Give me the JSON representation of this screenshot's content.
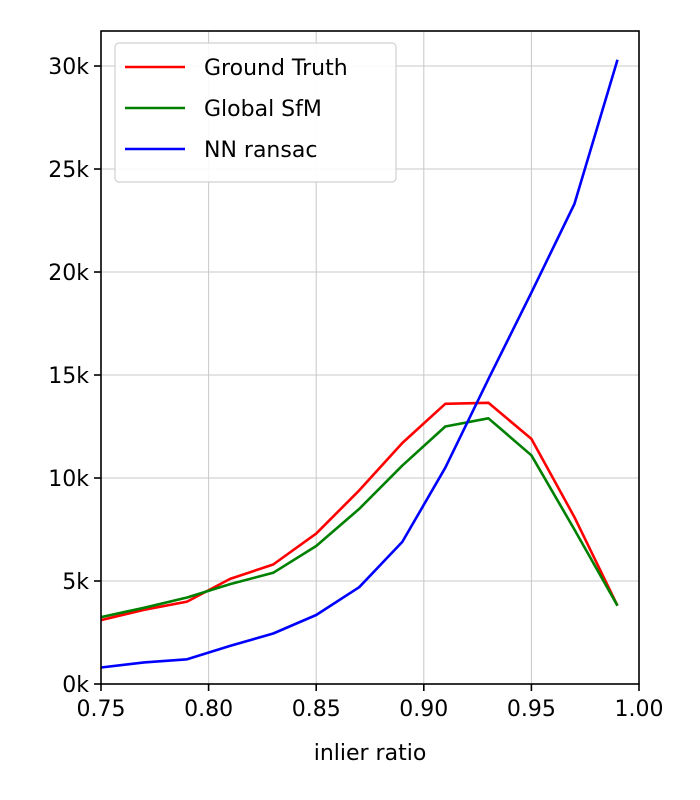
{
  "chart_data": {
    "type": "line",
    "title": "",
    "xlabel": "inlier ratio",
    "ylabel": "",
    "xlim": [
      0.75,
      1.0
    ],
    "ylim": [
      0,
      31700
    ],
    "grid": true,
    "legend_position": "top-left",
    "x_ticks": [
      0.75,
      0.8,
      0.85,
      0.9,
      0.95,
      1.0
    ],
    "x_tick_labels": [
      "0.75",
      "0.80",
      "0.85",
      "0.90",
      "0.95",
      "1.00"
    ],
    "y_ticks": [
      0,
      5000,
      10000,
      15000,
      20000,
      25000,
      30000
    ],
    "y_tick_labels": [
      "0k",
      "5k",
      "10k",
      "15k",
      "20k",
      "25k",
      "30k"
    ],
    "series": [
      {
        "name": "Ground Truth",
        "color": "#ff0000",
        "x": [
          0.75,
          0.77,
          0.79,
          0.81,
          0.83,
          0.85,
          0.87,
          0.89,
          0.91,
          0.93,
          0.95,
          0.97,
          0.99
        ],
        "y": [
          3100,
          3600,
          4000,
          5100,
          5800,
          7300,
          9400,
          11700,
          13600,
          13650,
          11900,
          8100,
          3800
        ]
      },
      {
        "name": "Global SfM",
        "color": "#008000",
        "x": [
          0.75,
          0.77,
          0.79,
          0.81,
          0.83,
          0.85,
          0.87,
          0.89,
          0.91,
          0.93,
          0.95,
          0.97,
          0.99
        ],
        "y": [
          3250,
          3700,
          4200,
          4850,
          5400,
          6700,
          8500,
          10600,
          12500,
          12900,
          11100,
          7500,
          3800
        ]
      },
      {
        "name": "NN ransac",
        "color": "#0000ff",
        "x": [
          0.75,
          0.77,
          0.79,
          0.81,
          0.83,
          0.85,
          0.87,
          0.89,
          0.91,
          0.93,
          0.95,
          0.97,
          0.99
        ],
        "y": [
          800,
          1050,
          1200,
          1850,
          2450,
          3350,
          4700,
          6900,
          10500,
          14800,
          19000,
          23300,
          30300
        ]
      }
    ]
  }
}
